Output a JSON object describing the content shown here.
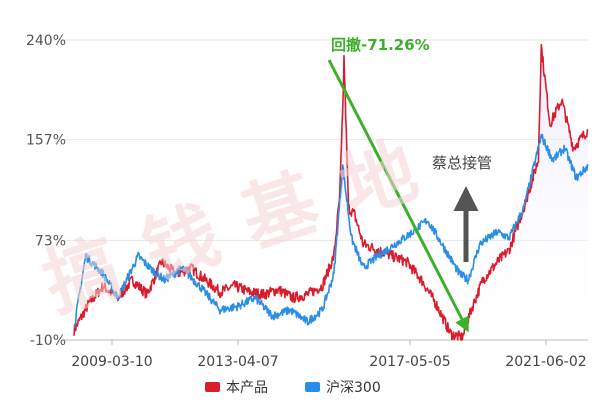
{
  "watermark": "搞钱基地",
  "chart_data": {
    "type": "line",
    "x_ticks": [
      "2009-03-10",
      "2013-04-07",
      "2017-05-05",
      "2021-06-02"
    ],
    "y_ticks": [
      "240%",
      "157%",
      "73%",
      "-10%"
    ],
    "ylim": [
      -10,
      240
    ],
    "xlim": [
      "2007-10",
      "2022-06"
    ],
    "grid": true,
    "legend_position": "bottom-center",
    "series": [
      {
        "name": "本产品",
        "color": "#d81e2c",
        "points": [
          [
            "2007-10",
            -2
          ],
          [
            "2008-03",
            20
          ],
          [
            "2008-08",
            35
          ],
          [
            "2009-01",
            25
          ],
          [
            "2009-06",
            40
          ],
          [
            "2009-11",
            28
          ],
          [
            "2010-04",
            55
          ],
          [
            "2010-09",
            45
          ],
          [
            "2011-02",
            50
          ],
          [
            "2011-07",
            40
          ],
          [
            "2011-12",
            30
          ],
          [
            "2012-05",
            35
          ],
          [
            "2012-10",
            30
          ],
          [
            "2013-03",
            28
          ],
          [
            "2013-08",
            32
          ],
          [
            "2014-01",
            25
          ],
          [
            "2014-06",
            28
          ],
          [
            "2014-11",
            35
          ],
          [
            "2015-03",
            60
          ],
          [
            "2015-05",
            110
          ],
          [
            "2015-06",
            180
          ],
          [
            "2015-06-15",
            225
          ],
          [
            "2015-08",
            100
          ],
          [
            "2015-10",
            95
          ],
          [
            "2016-01",
            70
          ],
          [
            "2016-06",
            65
          ],
          [
            "2016-11",
            60
          ],
          [
            "2017-04",
            55
          ],
          [
            "2017-09",
            40
          ],
          [
            "2018-02",
            20
          ],
          [
            "2018-07",
            -5
          ],
          [
            "2018-11",
            -8
          ],
          [
            "2019-02",
            15
          ],
          [
            "2019-06",
            40
          ],
          [
            "2019-11",
            55
          ],
          [
            "2020-03",
            65
          ],
          [
            "2020-08",
            100
          ],
          [
            "2021-01",
            140
          ],
          [
            "2021-02",
            235
          ],
          [
            "2021-05",
            170
          ],
          [
            "2021-09",
            190
          ],
          [
            "2022-01",
            150
          ],
          [
            "2022-06",
            165
          ]
        ]
      },
      {
        "name": "沪深300",
        "color": "#2a8ee6",
        "points": [
          [
            "2007-10",
            0
          ],
          [
            "2008-02",
            60
          ],
          [
            "2008-08",
            45
          ],
          [
            "2009-01",
            25
          ],
          [
            "2009-08",
            60
          ],
          [
            "2009-12",
            50
          ],
          [
            "2010-05",
            40
          ],
          [
            "2010-11",
            50
          ],
          [
            "2011-05",
            35
          ],
          [
            "2011-12",
            15
          ],
          [
            "2012-06",
            18
          ],
          [
            "2012-12",
            25
          ],
          [
            "2013-06",
            10
          ],
          [
            "2013-12",
            15
          ],
          [
            "2014-06",
            5
          ],
          [
            "2014-11",
            15
          ],
          [
            "2015-03",
            45
          ],
          [
            "2015-06",
            135
          ],
          [
            "2015-09",
            75
          ],
          [
            "2016-01",
            50
          ],
          [
            "2016-06",
            60
          ],
          [
            "2016-12",
            70
          ],
          [
            "2017-06",
            80
          ],
          [
            "2017-11",
            90
          ],
          [
            "2018-04",
            70
          ],
          [
            "2018-10",
            45
          ],
          [
            "2019-01",
            40
          ],
          [
            "2019-05",
            70
          ],
          [
            "2019-11",
            80
          ],
          [
            "2020-03",
            75
          ],
          [
            "2020-08",
            100
          ],
          [
            "2021-02",
            160
          ],
          [
            "2021-06",
            140
          ],
          [
            "2021-10",
            150
          ],
          [
            "2022-02",
            125
          ],
          [
            "2022-06",
            135
          ]
        ]
      }
    ],
    "annotations": [
      {
        "text": "回撤-71.26%",
        "color": "#3bb02a"
      },
      {
        "text": "蔡总接管",
        "color": "#555555"
      }
    ]
  }
}
